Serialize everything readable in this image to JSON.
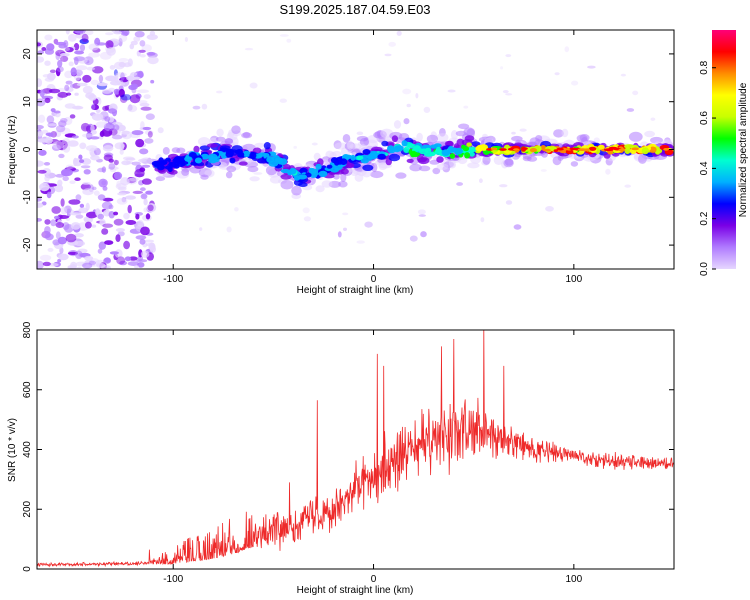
{
  "title": "S199.2025.187.04.59.E03",
  "chart_data": [
    {
      "type": "heatmap",
      "xlabel": "Height of straight line (km)",
      "ylabel": "Frequency (Hz)",
      "xlim": [
        -168,
        150
      ],
      "ylim": [
        -25,
        25
      ],
      "x_ticks": [
        -100,
        0,
        100
      ],
      "y_ticks": [
        -20,
        -10,
        0,
        10,
        20
      ],
      "colorbar": {
        "label": "Normalized spectral amplitude",
        "range": [
          0,
          0.95
        ],
        "ticks": [
          0.0,
          0.2,
          0.4,
          0.6,
          0.8
        ],
        "colormap": [
          "#e6d6ff",
          "#b07bff",
          "#7a00e6",
          "#0000ff",
          "#00b0ff",
          "#00ffd0",
          "#00ff00",
          "#c8ff00",
          "#ffff00",
          "#ff8c00",
          "#ff0000",
          "#ff0078"
        ]
      },
      "noise_region_x": [
        -168,
        -110
      ],
      "ridge": {
        "x": [
          -110,
          -100,
          -90,
          -80,
          -70,
          -60,
          -50,
          -40,
          -35,
          -30,
          -20,
          -10,
          0,
          10,
          20,
          30,
          40,
          50,
          60,
          70,
          80,
          90,
          100,
          110,
          120,
          130,
          140,
          148
        ],
        "frequency": [
          -3,
          -3,
          -2,
          -1.5,
          -1,
          -1,
          -2,
          -5,
          -5.5,
          -5,
          -3.5,
          -2,
          -1,
          0,
          0,
          -0.5,
          -0.5,
          0,
          0,
          0,
          0,
          0,
          0,
          0,
          0,
          0,
          0,
          0
        ],
        "amplitude": [
          0.3,
          0.32,
          0.35,
          0.35,
          0.35,
          0.33,
          0.35,
          0.38,
          0.35,
          0.38,
          0.35,
          0.38,
          0.4,
          0.45,
          0.48,
          0.45,
          0.5,
          0.6,
          0.75,
          0.85,
          0.8,
          0.82,
          0.85,
          0.85,
          0.82,
          0.85,
          0.85,
          0.85
        ]
      }
    },
    {
      "type": "line",
      "xlabel": "Height of straight line (km)",
      "ylabel": "SNR (10 * v/v)",
      "xlim": [
        -168,
        150
      ],
      "ylim": [
        0,
        800
      ],
      "x_ticks": [
        -100,
        0,
        100
      ],
      "y_ticks": [
        0,
        200,
        400,
        600,
        800
      ],
      "color": "#ee2a2a",
      "envelope": {
        "x": [
          -168,
          -120,
          -110,
          -100,
          -90,
          -80,
          -70,
          -60,
          -50,
          -40,
          -30,
          -20,
          -10,
          0,
          10,
          20,
          30,
          40,
          50,
          60,
          70,
          80,
          90,
          100,
          110,
          120,
          130,
          140,
          150
        ],
        "mean": [
          15,
          18,
          20,
          30,
          45,
          60,
          80,
          110,
          130,
          150,
          180,
          210,
          260,
          320,
          360,
          400,
          430,
          450,
          460,
          440,
          420,
          400,
          390,
          380,
          370,
          360,
          360,
          355,
          355
        ],
        "spread": [
          8,
          8,
          10,
          25,
          40,
          50,
          60,
          70,
          80,
          90,
          100,
          110,
          120,
          140,
          150,
          150,
          150,
          150,
          150,
          120,
          80,
          60,
          50,
          40,
          40,
          40,
          40,
          35,
          35
        ]
      },
      "peaks": [
        {
          "x": -112,
          "y": 65
        },
        {
          "x": -42,
          "y": 290
        },
        {
          "x": -28,
          "y": 565
        },
        {
          "x": 2,
          "y": 720
        },
        {
          "x": 5,
          "y": 680
        },
        {
          "x": 34,
          "y": 745
        },
        {
          "x": 40,
          "y": 770
        },
        {
          "x": 55,
          "y": 815
        },
        {
          "x": 65,
          "y": 680
        }
      ]
    }
  ]
}
